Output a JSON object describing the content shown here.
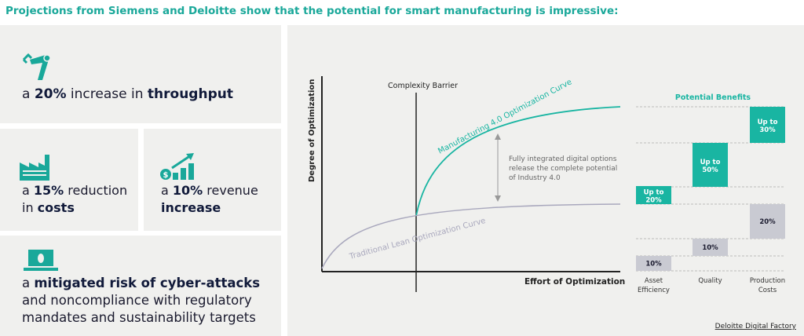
{
  "title": "Projections from Siemens and Deloitte show that the potential for smart manufacturing is impressive:",
  "stats": [
    {
      "pre": "a ",
      "value": "20%",
      "mid": " increase in ",
      "bold": "throughput",
      "icon": "robot-arm-icon"
    },
    {
      "pre": "a ",
      "value": "15%",
      "mid": " reduction in ",
      "bold": "costs",
      "icon": "factory-icon"
    },
    {
      "pre": "a ",
      "value": "10%",
      "mid": " revenue ",
      "bold": "increase",
      "icon": "revenue-growth-icon"
    },
    {
      "pre": "a ",
      "bold": "mitigated risk of cyber-attacks",
      "rest": " and noncompliance with regulatory mandates and sustainability targets",
      "icon": "laptop-bug-icon"
    }
  ],
  "diagram": {
    "y_axis": "Degree of Optimization",
    "x_axis": "Effort of Optimization",
    "barrier": "Complexity Barrier",
    "curve_teal": "Manufacturing 4.0 Optimization Curve",
    "curve_gray": "Traditional Lean Optimization Curve",
    "annotation": [
      "Fully integrated digital options",
      "release the complete potential",
      "of Industry 4.0"
    ],
    "benefits_title": "Potential Benefits",
    "categories": [
      {
        "label": [
          "Asset",
          "Efficiency"
        ],
        "traditional": "10%",
        "industry40": [
          "Up to",
          "20%"
        ]
      },
      {
        "label": [
          "Quality"
        ],
        "traditional": "10%",
        "industry40": [
          "Up to",
          "50%"
        ]
      },
      {
        "label": [
          "Production",
          "Costs"
        ],
        "traditional": "20%",
        "industry40": [
          "Up to",
          "30%"
        ]
      }
    ],
    "source": "Deloitte Digital Factory"
  },
  "colors": {
    "teal": "#19b5a2",
    "gray": "#c9cad2"
  }
}
